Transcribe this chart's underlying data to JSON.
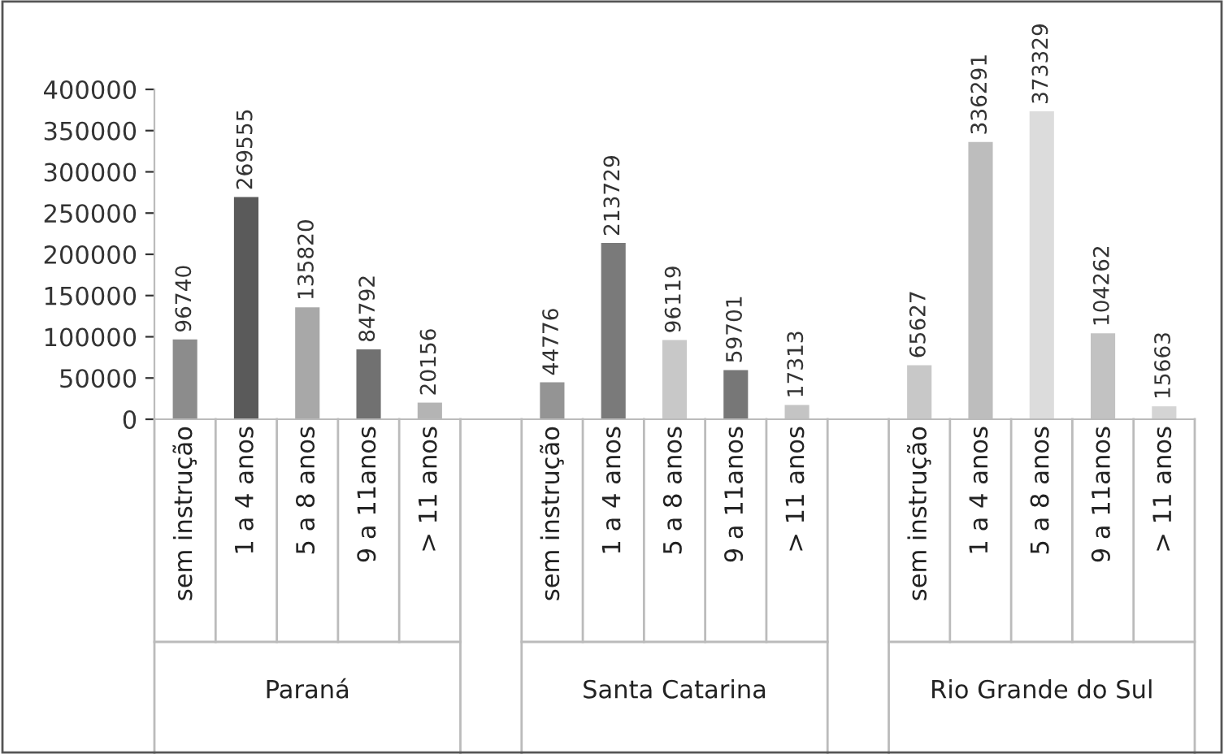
{
  "chart_data": {
    "type": "bar",
    "categories": [
      "sem instrução",
      "1 a 4 anos",
      "5 a 8 anos",
      "9 a 11anos",
      "> 11 anos",
      null,
      "sem instrução",
      "1 a 4 anos",
      "5 a 8 anos",
      "9 a 11anos",
      "> 11 anos",
      null,
      "sem instrução",
      "1 a 4 anos",
      "5 a 8 anos",
      "9 a 11anos",
      "> 11 anos"
    ],
    "values": [
      96740,
      269555,
      135820,
      84792,
      20156,
      null,
      44776,
      213729,
      96119,
      59701,
      17313,
      null,
      65627,
      336291,
      373329,
      104262,
      15663
    ],
    "colors": [
      "#8c8c8c",
      "#5a5a5a",
      "#a8a8a8",
      "#717171",
      "#b4b4b4",
      null,
      "#949494",
      "#7a7a7a",
      "#c8c8c8",
      "#777777",
      "#c4c4c4",
      null,
      "#c8c8c8",
      "#bdbdbd",
      "#dcdcdc",
      "#c2c2c2",
      "#d4d4d4"
    ],
    "ylim": [
      0,
      400000
    ],
    "yticks": [
      0,
      50000,
      100000,
      150000,
      200000,
      250000,
      300000,
      350000,
      400000
    ],
    "data_labels": true,
    "grid": false,
    "legend": false,
    "annotations": [
      "Paraná",
      "Santa Catarina",
      "Rio Grande do Sul"
    ]
  }
}
